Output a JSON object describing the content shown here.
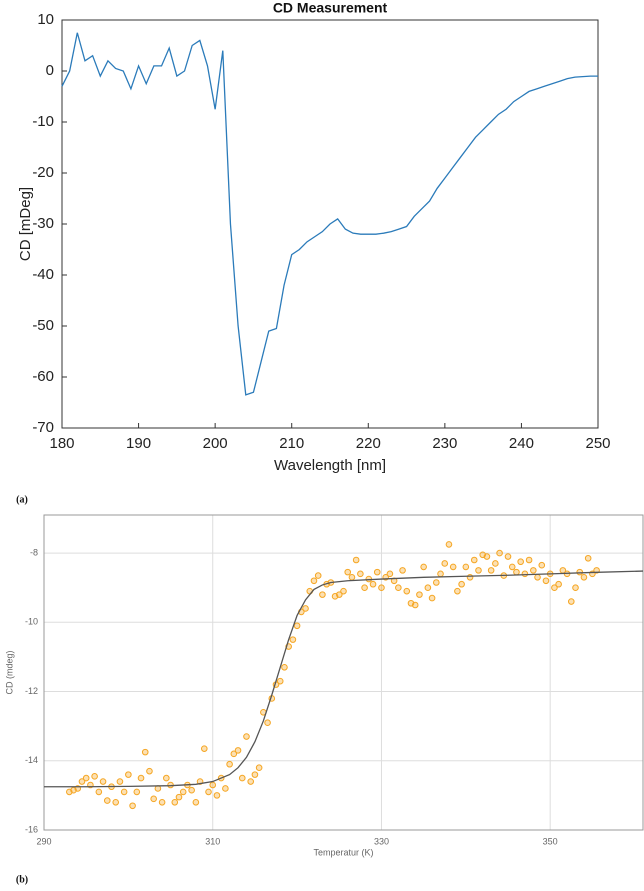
{
  "chart_data": [
    {
      "type": "line",
      "title": "CD Measurement",
      "panel_label": "(a)",
      "x_label": "Wavelength [nm]",
      "y_label": "CD [mDeg]",
      "xlim": [
        180,
        250
      ],
      "xticks": [
        180,
        190,
        200,
        210,
        220,
        230,
        240,
        250
      ],
      "ylim": [
        -70,
        10
      ],
      "yticks": [
        -70,
        -60,
        -50,
        -40,
        -30,
        -20,
        -10,
        0,
        10
      ],
      "grid": false,
      "color": "#2b7bba",
      "x": [
        180,
        181,
        182,
        183,
        184,
        185,
        186,
        187,
        188,
        189,
        190,
        191,
        192,
        193,
        194,
        195,
        196,
        197,
        198,
        199,
        200,
        201,
        202,
        203,
        204,
        205,
        206,
        207,
        208,
        209,
        210,
        211,
        212,
        213,
        214,
        215,
        216,
        217,
        218,
        219,
        220,
        221,
        222,
        223,
        224,
        225,
        226,
        227,
        228,
        229,
        230,
        231,
        232,
        233,
        234,
        235,
        236,
        237,
        238,
        239,
        240,
        241,
        242,
        243,
        244,
        245,
        246,
        247,
        248,
        249,
        250
      ],
      "values": [
        -3,
        0,
        7.5,
        2,
        3,
        -1,
        2,
        0.5,
        0,
        -3.5,
        1,
        -2.5,
        1,
        1,
        4.5,
        -1,
        0,
        5,
        6,
        1,
        -7.5,
        4,
        -30,
        -50,
        -63.5,
        -63,
        -57,
        -51,
        -50.5,
        -42,
        -36,
        -35,
        -33.5,
        -32.5,
        -31.5,
        -30,
        -29,
        -31,
        -31.8,
        -32,
        -32,
        -32,
        -31.8,
        -31.5,
        -31,
        -30.5,
        -28.5,
        -27,
        -25.5,
        -23,
        -21,
        -19,
        -17,
        -15,
        -13,
        -11.5,
        -10,
        -8.5,
        -7.5,
        -6,
        -5,
        -4,
        -3.5,
        -3,
        -2.5,
        -2,
        -1.5,
        -1.2,
        -1.1,
        -1,
        -1
      ]
    },
    {
      "type": "scatter",
      "panel_label": "(b)",
      "x_label": "Temperatur (K)",
      "y_label": "CD (mdeg)",
      "xlim": [
        290,
        361
      ],
      "xticks": [
        290,
        310,
        330,
        350
      ],
      "ylim": [
        -16,
        -6.9
      ],
      "yticks": [
        -16,
        -14,
        -12,
        -10,
        -8
      ],
      "grid": true,
      "color": "#f5a623",
      "fit_color": "#555555",
      "x": [
        293,
        293.5,
        294,
        294.5,
        295,
        295.5,
        296,
        296.5,
        297,
        297.5,
        298,
        298.5,
        299,
        299.5,
        300,
        300.5,
        301,
        301.5,
        302,
        302.5,
        303,
        303.5,
        304,
        304.5,
        305,
        305.5,
        306,
        306.5,
        307,
        307.5,
        308,
        308.5,
        309,
        309.5,
        310,
        310.5,
        311,
        311.5,
        312,
        312.5,
        313,
        313.5,
        314,
        314.5,
        315,
        315.5,
        316,
        316.5,
        317,
        317.5,
        318,
        318.5,
        319,
        319.5,
        320,
        320.5,
        321,
        321.5,
        322,
        322.5,
        323,
        323.5,
        324,
        324.5,
        325,
        325.5,
        326,
        326.5,
        327,
        327.5,
        328,
        328.5,
        329,
        329.5,
        330,
        330.5,
        331,
        331.5,
        332,
        332.5,
        333,
        333.5,
        334,
        334.5,
        335,
        335.5,
        336,
        336.5,
        337,
        337.5,
        338,
        338.5,
        339,
        339.5,
        340,
        340.5,
        341,
        341.5,
        342,
        342.5,
        343,
        343.5,
        344,
        344.5,
        345,
        345.5,
        346,
        346.5,
        347,
        347.5,
        348,
        348.5,
        349,
        349.5,
        350,
        350.5,
        351,
        351.5,
        352,
        352.5,
        353,
        353.5,
        354,
        354.5,
        355,
        355.5
      ],
      "values": [
        -14.9,
        -14.85,
        -14.8,
        -14.6,
        -14.5,
        -14.7,
        -14.45,
        -14.9,
        -14.6,
        -15.15,
        -14.75,
        -15.2,
        -14.6,
        -14.9,
        -14.4,
        -15.3,
        -14.9,
        -14.5,
        -13.75,
        -14.3,
        -15.1,
        -14.8,
        -15.2,
        -14.5,
        -14.7,
        -15.2,
        -15.05,
        -14.9,
        -14.7,
        -14.85,
        -15.2,
        -14.6,
        -13.65,
        -14.9,
        -14.7,
        -15,
        -14.5,
        -14.8,
        -14.1,
        -13.8,
        -13.7,
        -14.5,
        -13.3,
        -14.6,
        -14.4,
        -14.2,
        -12.6,
        -12.9,
        -12.2,
        -11.8,
        -11.7,
        -11.3,
        -10.7,
        -10.5,
        -10.1,
        -9.7,
        -9.6,
        -9.1,
        -8.8,
        -8.65,
        -9.2,
        -8.9,
        -8.85,
        -9.25,
        -9.2,
        -9.1,
        -8.55,
        -8.7,
        -8.2,
        -8.6,
        -9,
        -8.75,
        -8.9,
        -8.55,
        -9,
        -8.7,
        -8.6,
        -8.8,
        -9,
        -8.5,
        -9.1,
        -9.45,
        -9.5,
        -9.2,
        -8.4,
        -9,
        -9.3,
        -8.85,
        -8.6,
        -8.3,
        -7.75,
        -8.4,
        -9.1,
        -8.9,
        -8.4,
        -8.7,
        -8.2,
        -8.5,
        -8.05,
        -8.1,
        -8.5,
        -8.3,
        -8,
        -8.65,
        -8.1,
        -8.4,
        -8.55,
        -8.25,
        -8.6,
        -8.2,
        -8.5,
        -8.7,
        -8.35,
        -8.8,
        -8.6,
        -9,
        -8.9,
        -8.5,
        -8.6,
        -9.4,
        -9,
        -8.55,
        -8.7,
        -8.15,
        -8.6,
        -8.5
      ],
      "fit_x": [
        290,
        295,
        300,
        305,
        308,
        310,
        312,
        313,
        314,
        315,
        316,
        317,
        318,
        319,
        320,
        321,
        322,
        323,
        324,
        326,
        330,
        335,
        340,
        345,
        350,
        355,
        361
      ],
      "fit_values": [
        -14.75,
        -14.75,
        -14.74,
        -14.72,
        -14.68,
        -14.6,
        -14.4,
        -14.2,
        -13.9,
        -13.45,
        -12.85,
        -12.1,
        -11.3,
        -10.5,
        -9.8,
        -9.35,
        -9.05,
        -8.92,
        -8.85,
        -8.8,
        -8.75,
        -8.7,
        -8.67,
        -8.64,
        -8.6,
        -8.56,
        -8.52
      ]
    }
  ]
}
